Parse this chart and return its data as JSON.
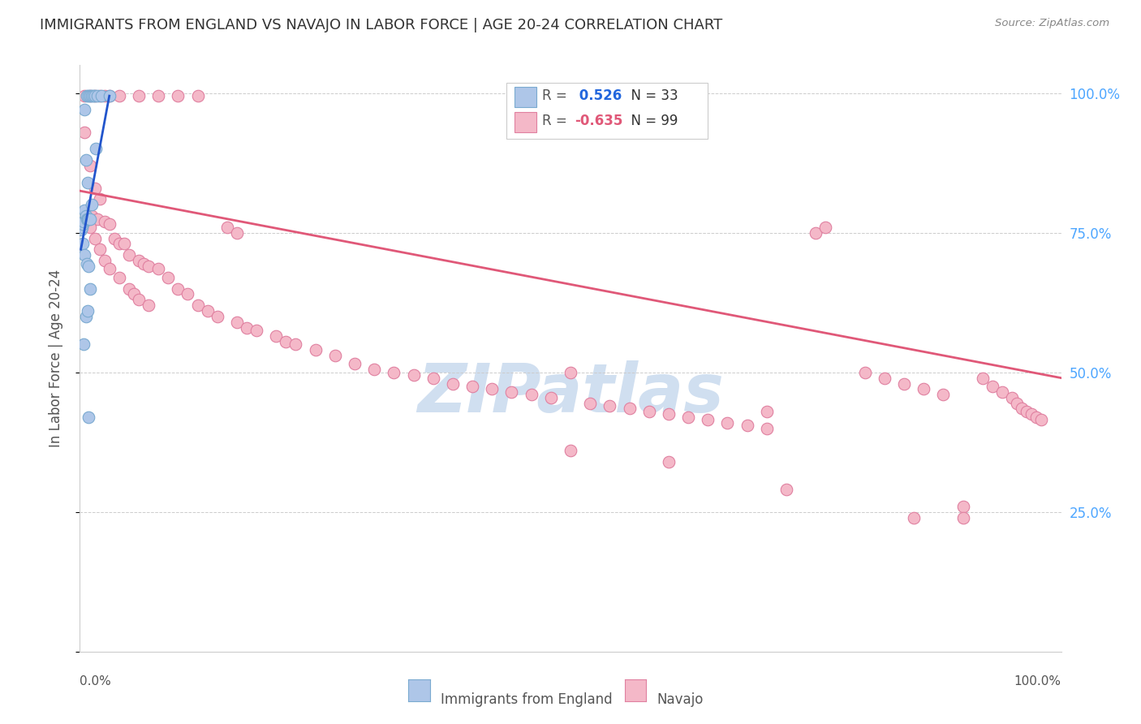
{
  "title": "IMMIGRANTS FROM ENGLAND VS NAVAJO IN LABOR FORCE | AGE 20-24 CORRELATION CHART",
  "source": "Source: ZipAtlas.com",
  "ylabel": "In Labor Force | Age 20-24",
  "xlim": [
    0.0,
    1.0
  ],
  "ylim": [
    0.0,
    1.05
  ],
  "england_color": "#aec6e8",
  "england_edge_color": "#7aaad0",
  "navajo_color": "#f4b8c8",
  "navajo_edge_color": "#e080a0",
  "scatter_size": 110,
  "england_line_color": "#2255cc",
  "navajo_line_color": "#e05878",
  "grid_color": "#cccccc",
  "bg_color": "#ffffff",
  "title_color": "#333333",
  "title_fontsize": 13,
  "axis_label_color": "#555555",
  "right_label_color": "#4da6ff",
  "source_color": "#888888",
  "watermark_text": "ZIPatlas",
  "watermark_color": "#d0dff0",
  "watermark_fontsize": 60,
  "legend_R1_color": "#2266dd",
  "legend_R2_color": "#e05878",
  "legend_N_color": "#333333",
  "legend_label_color": "#555555",
  "england_points": [
    [
      0.001,
      0.755
    ],
    [
      0.002,
      0.76
    ],
    [
      0.003,
      0.765
    ],
    [
      0.003,
      0.73
    ],
    [
      0.004,
      0.77
    ],
    [
      0.004,
      0.55
    ],
    [
      0.005,
      0.97
    ],
    [
      0.005,
      0.79
    ],
    [
      0.005,
      0.71
    ],
    [
      0.006,
      0.88
    ],
    [
      0.006,
      0.78
    ],
    [
      0.006,
      0.6
    ],
    [
      0.007,
      0.995
    ],
    [
      0.007,
      0.775
    ],
    [
      0.007,
      0.695
    ],
    [
      0.008,
      0.84
    ],
    [
      0.008,
      0.775
    ],
    [
      0.008,
      0.61
    ],
    [
      0.009,
      0.995
    ],
    [
      0.009,
      0.775
    ],
    [
      0.009,
      0.69
    ],
    [
      0.01,
      0.995
    ],
    [
      0.01,
      0.775
    ],
    [
      0.01,
      0.65
    ],
    [
      0.012,
      0.995
    ],
    [
      0.012,
      0.8
    ],
    [
      0.014,
      0.995
    ],
    [
      0.015,
      0.995
    ],
    [
      0.016,
      0.9
    ],
    [
      0.018,
      0.995
    ],
    [
      0.022,
      0.995
    ],
    [
      0.03,
      0.995
    ],
    [
      0.009,
      0.42
    ]
  ],
  "navajo_points": [
    [
      0.005,
      0.995
    ],
    [
      0.01,
      0.995
    ],
    [
      0.015,
      0.995
    ],
    [
      0.02,
      0.995
    ],
    [
      0.025,
      0.995
    ],
    [
      0.03,
      0.995
    ],
    [
      0.04,
      0.995
    ],
    [
      0.06,
      0.995
    ],
    [
      0.08,
      0.995
    ],
    [
      0.1,
      0.995
    ],
    [
      0.12,
      0.995
    ],
    [
      0.005,
      0.93
    ],
    [
      0.01,
      0.87
    ],
    [
      0.015,
      0.83
    ],
    [
      0.02,
      0.81
    ],
    [
      0.012,
      0.78
    ],
    [
      0.018,
      0.775
    ],
    [
      0.025,
      0.77
    ],
    [
      0.03,
      0.765
    ],
    [
      0.035,
      0.74
    ],
    [
      0.04,
      0.73
    ],
    [
      0.045,
      0.73
    ],
    [
      0.05,
      0.71
    ],
    [
      0.06,
      0.7
    ],
    [
      0.065,
      0.695
    ],
    [
      0.07,
      0.69
    ],
    [
      0.08,
      0.685
    ],
    [
      0.008,
      0.77
    ],
    [
      0.01,
      0.76
    ],
    [
      0.015,
      0.74
    ],
    [
      0.02,
      0.72
    ],
    [
      0.025,
      0.7
    ],
    [
      0.03,
      0.685
    ],
    [
      0.04,
      0.67
    ],
    [
      0.05,
      0.65
    ],
    [
      0.055,
      0.64
    ],
    [
      0.06,
      0.63
    ],
    [
      0.07,
      0.62
    ],
    [
      0.15,
      0.76
    ],
    [
      0.16,
      0.75
    ],
    [
      0.09,
      0.67
    ],
    [
      0.1,
      0.65
    ],
    [
      0.11,
      0.64
    ],
    [
      0.12,
      0.62
    ],
    [
      0.13,
      0.61
    ],
    [
      0.14,
      0.6
    ],
    [
      0.16,
      0.59
    ],
    [
      0.17,
      0.58
    ],
    [
      0.18,
      0.575
    ],
    [
      0.2,
      0.565
    ],
    [
      0.21,
      0.555
    ],
    [
      0.22,
      0.55
    ],
    [
      0.24,
      0.54
    ],
    [
      0.26,
      0.53
    ],
    [
      0.28,
      0.515
    ],
    [
      0.3,
      0.505
    ],
    [
      0.32,
      0.5
    ],
    [
      0.34,
      0.495
    ],
    [
      0.36,
      0.49
    ],
    [
      0.38,
      0.48
    ],
    [
      0.4,
      0.475
    ],
    [
      0.42,
      0.47
    ],
    [
      0.44,
      0.465
    ],
    [
      0.46,
      0.46
    ],
    [
      0.48,
      0.455
    ],
    [
      0.5,
      0.5
    ],
    [
      0.52,
      0.445
    ],
    [
      0.54,
      0.44
    ],
    [
      0.56,
      0.435
    ],
    [
      0.58,
      0.43
    ],
    [
      0.6,
      0.425
    ],
    [
      0.62,
      0.42
    ],
    [
      0.64,
      0.415
    ],
    [
      0.66,
      0.41
    ],
    [
      0.68,
      0.405
    ],
    [
      0.7,
      0.4
    ],
    [
      0.5,
      0.36
    ],
    [
      0.6,
      0.34
    ],
    [
      0.7,
      0.43
    ],
    [
      0.72,
      0.29
    ],
    [
      0.75,
      0.75
    ],
    [
      0.76,
      0.76
    ],
    [
      0.8,
      0.5
    ],
    [
      0.82,
      0.49
    ],
    [
      0.84,
      0.48
    ],
    [
      0.86,
      0.47
    ],
    [
      0.88,
      0.46
    ],
    [
      0.9,
      0.26
    ],
    [
      0.92,
      0.49
    ],
    [
      0.93,
      0.475
    ],
    [
      0.94,
      0.465
    ],
    [
      0.95,
      0.455
    ],
    [
      0.955,
      0.445
    ],
    [
      0.96,
      0.435
    ],
    [
      0.965,
      0.43
    ],
    [
      0.97,
      0.425
    ],
    [
      0.975,
      0.42
    ],
    [
      0.98,
      0.415
    ],
    [
      0.85,
      0.24
    ],
    [
      0.9,
      0.24
    ]
  ],
  "england_line": {
    "x0": 0.001,
    "y0": 0.72,
    "x1": 0.03,
    "y1": 0.995
  },
  "navajo_line": {
    "x0": 0.0,
    "y0": 0.825,
    "x1": 1.0,
    "y1": 0.49
  }
}
